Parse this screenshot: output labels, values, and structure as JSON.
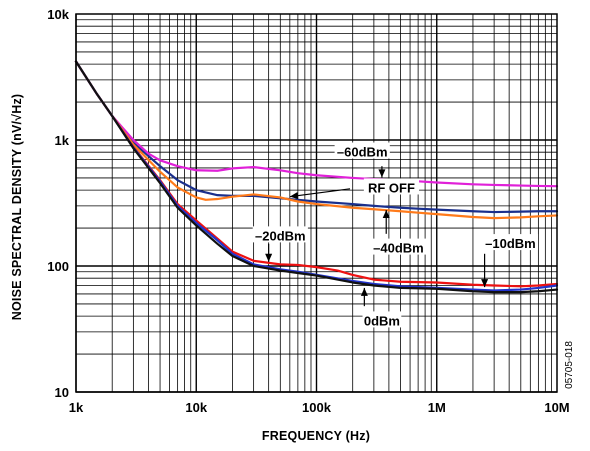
{
  "chart_data": {
    "type": "line",
    "title": "",
    "xlabel": "FREQUENCY (Hz)",
    "ylabel": "NOISE SPECTRAL DENSITY (nV/√Hz)",
    "xscale": "log",
    "yscale": "log",
    "xlim": [
      1000,
      10000000
    ],
    "ylim": [
      10,
      10000
    ],
    "grid": true,
    "x_ticks": [
      {
        "value": 1000,
        "label": "1k"
      },
      {
        "value": 10000,
        "label": "10k"
      },
      {
        "value": 100000,
        "label": "100k"
      },
      {
        "value": 1000000,
        "label": "1M"
      },
      {
        "value": 10000000,
        "label": "10M"
      }
    ],
    "y_ticks": [
      {
        "value": 10,
        "label": "10"
      },
      {
        "value": 100,
        "label": "100"
      },
      {
        "value": 1000,
        "label": "1k"
      },
      {
        "value": 10000,
        "label": "10k"
      }
    ],
    "series": [
      {
        "name": "RF OFF",
        "color": "#1a2f8c",
        "points": [
          [
            1000,
            4200
          ],
          [
            1500,
            2300
          ],
          [
            2000,
            1550
          ],
          [
            3000,
            950
          ],
          [
            5000,
            620
          ],
          [
            7000,
            480
          ],
          [
            10000,
            400
          ],
          [
            15000,
            365
          ],
          [
            20000,
            360
          ],
          [
            30000,
            360
          ],
          [
            50000,
            345
          ],
          [
            70000,
            335
          ],
          [
            100000,
            325
          ],
          [
            200000,
            310
          ],
          [
            300000,
            300
          ],
          [
            500000,
            290
          ],
          [
            700000,
            285
          ],
          [
            1000000,
            280
          ],
          [
            2000000,
            272
          ],
          [
            3000000,
            268
          ],
          [
            5000000,
            270
          ],
          [
            7000000,
            272
          ],
          [
            10000000,
            272
          ]
        ]
      },
      {
        "name": "-60dBm",
        "color": "#e020d8",
        "points": [
          [
            1000,
            4200
          ],
          [
            1500,
            2300
          ],
          [
            2000,
            1550
          ],
          [
            3000,
            1000
          ],
          [
            4000,
            780
          ],
          [
            5000,
            690
          ],
          [
            7000,
            620
          ],
          [
            10000,
            575
          ],
          [
            15000,
            570
          ],
          [
            20000,
            595
          ],
          [
            30000,
            610
          ],
          [
            50000,
            575
          ],
          [
            70000,
            545
          ],
          [
            100000,
            525
          ],
          [
            200000,
            500
          ],
          [
            300000,
            490
          ],
          [
            500000,
            480
          ],
          [
            700000,
            470
          ],
          [
            1000000,
            460
          ],
          [
            2000000,
            445
          ],
          [
            3000000,
            440
          ],
          [
            5000000,
            435
          ],
          [
            7000000,
            432
          ],
          [
            10000000,
            430
          ]
        ]
      },
      {
        "name": "-40dBm",
        "color": "#ff7a1a",
        "points": [
          [
            1000,
            4200
          ],
          [
            1500,
            2300
          ],
          [
            2000,
            1550
          ],
          [
            3000,
            920
          ],
          [
            5000,
            560
          ],
          [
            7000,
            420
          ],
          [
            10000,
            350
          ],
          [
            12000,
            335
          ],
          [
            15000,
            340
          ],
          [
            20000,
            355
          ],
          [
            30000,
            370
          ],
          [
            50000,
            350
          ],
          [
            70000,
            325
          ],
          [
            100000,
            310
          ],
          [
            200000,
            290
          ],
          [
            300000,
            282
          ],
          [
            500000,
            272
          ],
          [
            700000,
            265
          ],
          [
            1000000,
            258
          ],
          [
            2000000,
            245
          ],
          [
            3000000,
            240
          ],
          [
            5000000,
            243
          ],
          [
            7000000,
            248
          ],
          [
            10000000,
            252
          ]
        ]
      },
      {
        "name": "-20dBm",
        "color": "#ee1111",
        "points": [
          [
            1000,
            4200
          ],
          [
            1500,
            2300
          ],
          [
            2000,
            1550
          ],
          [
            3000,
            880
          ],
          [
            5000,
            480
          ],
          [
            7000,
            310
          ],
          [
            10000,
            230
          ],
          [
            15000,
            165
          ],
          [
            20000,
            130
          ],
          [
            30000,
            110
          ],
          [
            50000,
            103
          ],
          [
            70000,
            102
          ],
          [
            100000,
            98
          ],
          [
            150000,
            92
          ],
          [
            200000,
            85
          ],
          [
            300000,
            78
          ],
          [
            500000,
            75
          ],
          [
            1000000,
            74
          ],
          [
            2000000,
            71
          ],
          [
            3000000,
            70
          ],
          [
            5000000,
            69
          ],
          [
            7000000,
            70
          ],
          [
            10000000,
            72
          ]
        ]
      },
      {
        "name": "-10dBm",
        "color": "#2233cc",
        "points": [
          [
            1000,
            4200
          ],
          [
            1500,
            2300
          ],
          [
            2000,
            1550
          ],
          [
            3000,
            870
          ],
          [
            5000,
            470
          ],
          [
            7000,
            300
          ],
          [
            10000,
            220
          ],
          [
            15000,
            160
          ],
          [
            20000,
            125
          ],
          [
            30000,
            103
          ],
          [
            50000,
            94
          ],
          [
            70000,
            90
          ],
          [
            100000,
            85
          ],
          [
            200000,
            76
          ],
          [
            300000,
            72
          ],
          [
            500000,
            69
          ],
          [
            1000000,
            67
          ],
          [
            2000000,
            65
          ],
          [
            3000000,
            64
          ],
          [
            5000000,
            65
          ],
          [
            7000000,
            67
          ],
          [
            10000000,
            70
          ]
        ]
      },
      {
        "name": "0dBm",
        "color": "#111111",
        "points": [
          [
            1000,
            4200
          ],
          [
            1500,
            2300
          ],
          [
            2000,
            1550
          ],
          [
            3000,
            860
          ],
          [
            5000,
            455
          ],
          [
            7000,
            290
          ],
          [
            10000,
            210
          ],
          [
            15000,
            150
          ],
          [
            20000,
            120
          ],
          [
            30000,
            100
          ],
          [
            50000,
            92
          ],
          [
            70000,
            88
          ],
          [
            100000,
            84
          ],
          [
            200000,
            74
          ],
          [
            300000,
            70
          ],
          [
            500000,
            67
          ],
          [
            1000000,
            66
          ],
          [
            2000000,
            63
          ],
          [
            3000000,
            62
          ],
          [
            5000000,
            62
          ],
          [
            7000000,
            63
          ],
          [
            10000000,
            65
          ]
        ]
      }
    ],
    "annotations": [
      {
        "text": "–60dBm",
        "x": 240000,
        "y": 810,
        "arrow_from": [
          350000,
          620
        ],
        "arrow_to": [
          350000,
          505
        ]
      },
      {
        "text": "RF OFF",
        "x": 420000,
        "y": 420,
        "arrow_from": [
          190000,
          410
        ],
        "arrow_to": [
          60000,
          355
        ]
      },
      {
        "text": "–20dBm",
        "x": 50000,
        "y": 175,
        "arrow_from": [
          40000,
          150
        ],
        "arrow_to": [
          40000,
          108
        ]
      },
      {
        "text": "–40dBm",
        "x": 480000,
        "y": 140,
        "arrow_from": [
          380000,
          180
        ],
        "arrow_to": [
          380000,
          278
        ]
      },
      {
        "text": "–10dBm",
        "x": 4100000,
        "y": 152,
        "arrow_from": [
          2500000,
          125
        ],
        "arrow_to": [
          2500000,
          68
        ]
      },
      {
        "text": "0dBm",
        "x": 350000,
        "y": 37,
        "arrow_from": [
          250000,
          48
        ],
        "arrow_to": [
          250000,
          67
        ]
      }
    ]
  },
  "figure_id": "05705-018"
}
